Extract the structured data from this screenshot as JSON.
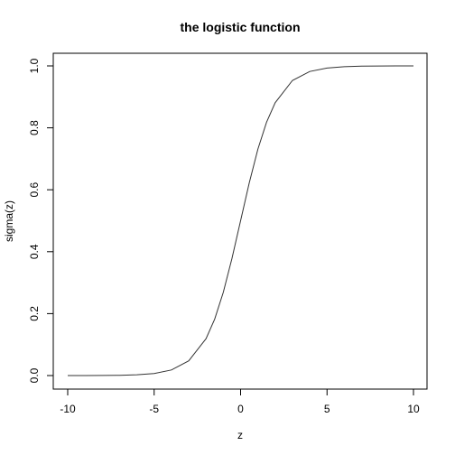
{
  "chart_data": {
    "type": "line",
    "title": "the logistic function",
    "xlabel": "z",
    "ylabel": "sigma(z)",
    "xlim": [
      -10,
      10
    ],
    "ylim": [
      0,
      1
    ],
    "x_ticks": [
      -10,
      -5,
      0,
      5,
      10
    ],
    "y_ticks": [
      0.0,
      0.2,
      0.4,
      0.6,
      0.8,
      1.0
    ],
    "x_tick_labels": [
      "-10",
      "-5",
      "0",
      "5",
      "10"
    ],
    "y_tick_labels": [
      "0.0",
      "0.2",
      "0.4",
      "0.6",
      "0.8",
      "1.0"
    ],
    "grid": false,
    "series": [
      {
        "color": "#333333",
        "x": [
          -10,
          -9,
          -8,
          -7,
          -6,
          -5,
          -4,
          -3,
          -2,
          -1.5,
          -1,
          -0.5,
          0,
          0.5,
          1,
          1.5,
          2,
          3,
          4,
          5,
          6,
          7,
          8,
          9,
          10
        ],
        "y": [
          4.54e-05,
          0.000123,
          0.000335,
          0.000911,
          0.00247,
          0.00669,
          0.018,
          0.0474,
          0.119,
          0.182,
          0.269,
          0.378,
          0.5,
          0.622,
          0.731,
          0.818,
          0.881,
          0.953,
          0.982,
          0.993,
          0.9975,
          0.9991,
          0.99966,
          0.99988,
          0.99995
        ]
      }
    ]
  }
}
